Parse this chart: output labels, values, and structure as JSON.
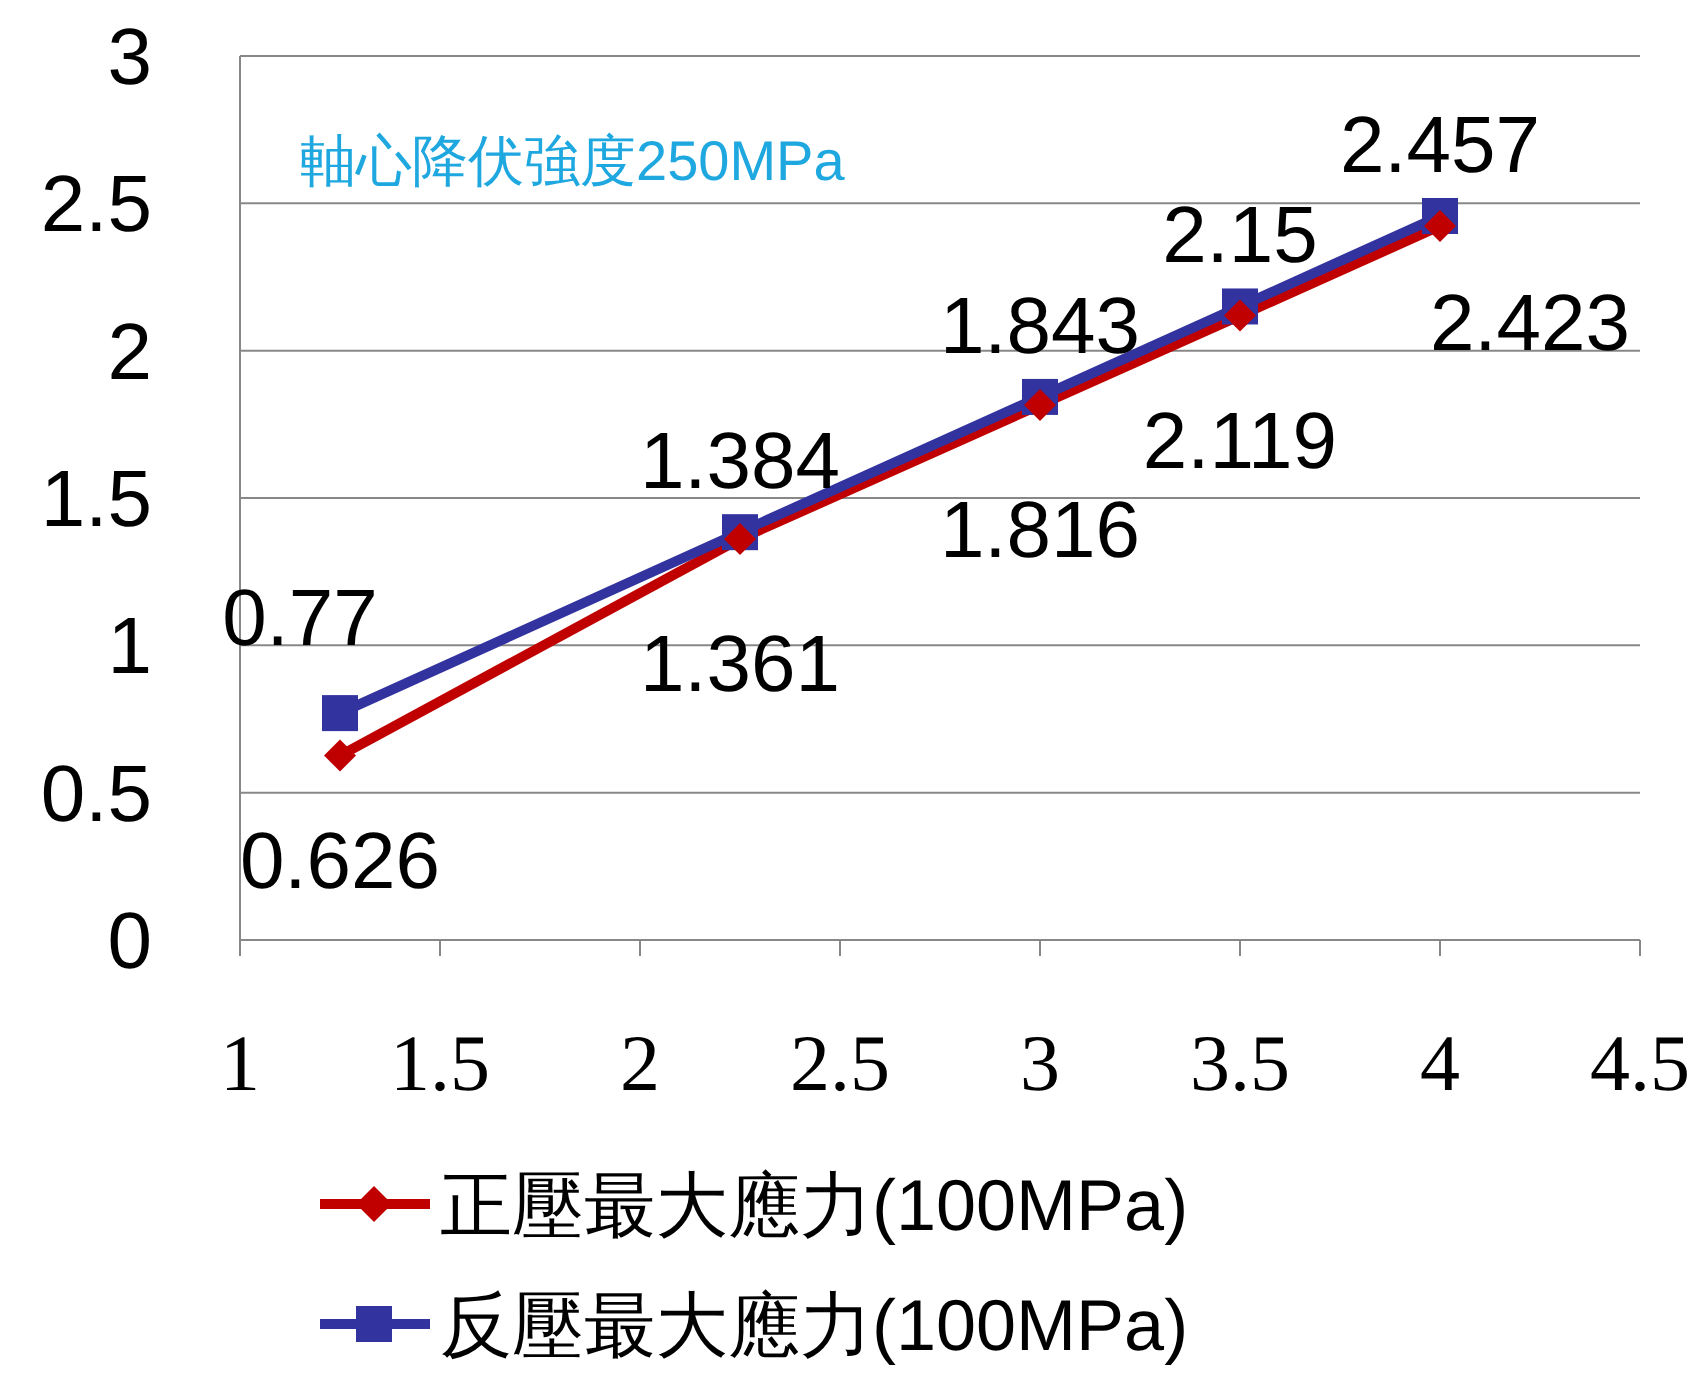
{
  "chart_data": {
    "type": "line",
    "x": [
      1.25,
      2.25,
      3,
      3.5,
      4
    ],
    "series": [
      {
        "name": "正壓最大應力(100MPa)",
        "color": "#c00000",
        "marker": "diamond",
        "values": [
          0.626,
          1.361,
          1.816,
          2.119,
          2.423
        ]
      },
      {
        "name": "反壓最大應力(100MPa)",
        "color": "#3333a0",
        "marker": "square",
        "values": [
          0.77,
          1.384,
          1.843,
          2.15,
          2.457
        ]
      }
    ],
    "xlim": [
      1,
      4.5
    ],
    "xticks": [
      1,
      1.5,
      2,
      2.5,
      3,
      3.5,
      4,
      4.5
    ],
    "ylim": [
      0,
      3
    ],
    "yticks": [
      0,
      0.5,
      1,
      1.5,
      2,
      2.5,
      3
    ],
    "grid": "y",
    "legend": "bottom",
    "data_labels": true,
    "annotations": [
      "軸心降伏強度250MPa"
    ]
  }
}
